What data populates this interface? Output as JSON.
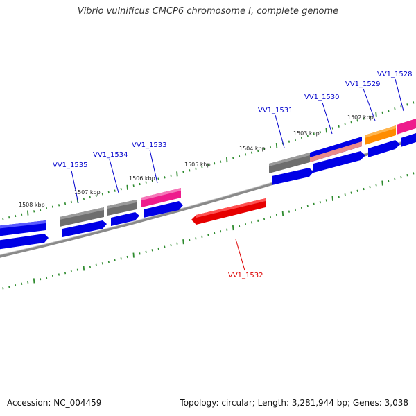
{
  "title": "Vibrio vulnificus CMCP6 chromosome I, complete genome",
  "footer": {
    "accession": "Accession: NC_004459",
    "summary": "Topology: circular; Length: 3,281,944 bp; Genes: 3,038"
  },
  "colors": {
    "backbone": "#888888",
    "tick": "#2e8b2e",
    "label_forward": "#0000cc",
    "label_reverse": "#dd0000",
    "cds_blue": "#0000e6",
    "gene_gray": "#6e6e6e",
    "gene_pink": "#ee1c8c",
    "gene_orange": "#ff8c00",
    "gene_red": "#e60000",
    "gene_salmon": "#e88a8a"
  },
  "scale_labels": [
    "1508 kbp",
    "1507 kbp",
    "1506 kbp",
    "1505 kbp",
    "1504 kbp",
    "1503 kbp",
    "1502 kbp"
  ],
  "gene_labels": [
    {
      "name": "VV1_1535",
      "strand": "forward"
    },
    {
      "name": "VV1_1534",
      "strand": "forward"
    },
    {
      "name": "VV1_1533",
      "strand": "forward"
    },
    {
      "name": "VV1_1532",
      "strand": "reverse"
    },
    {
      "name": "VV1_1531",
      "strand": "forward"
    },
    {
      "name": "VV1_1530",
      "strand": "forward"
    },
    {
      "name": "VV1_1529",
      "strand": "forward"
    },
    {
      "name": "VV1_1528",
      "strand": "forward"
    }
  ]
}
